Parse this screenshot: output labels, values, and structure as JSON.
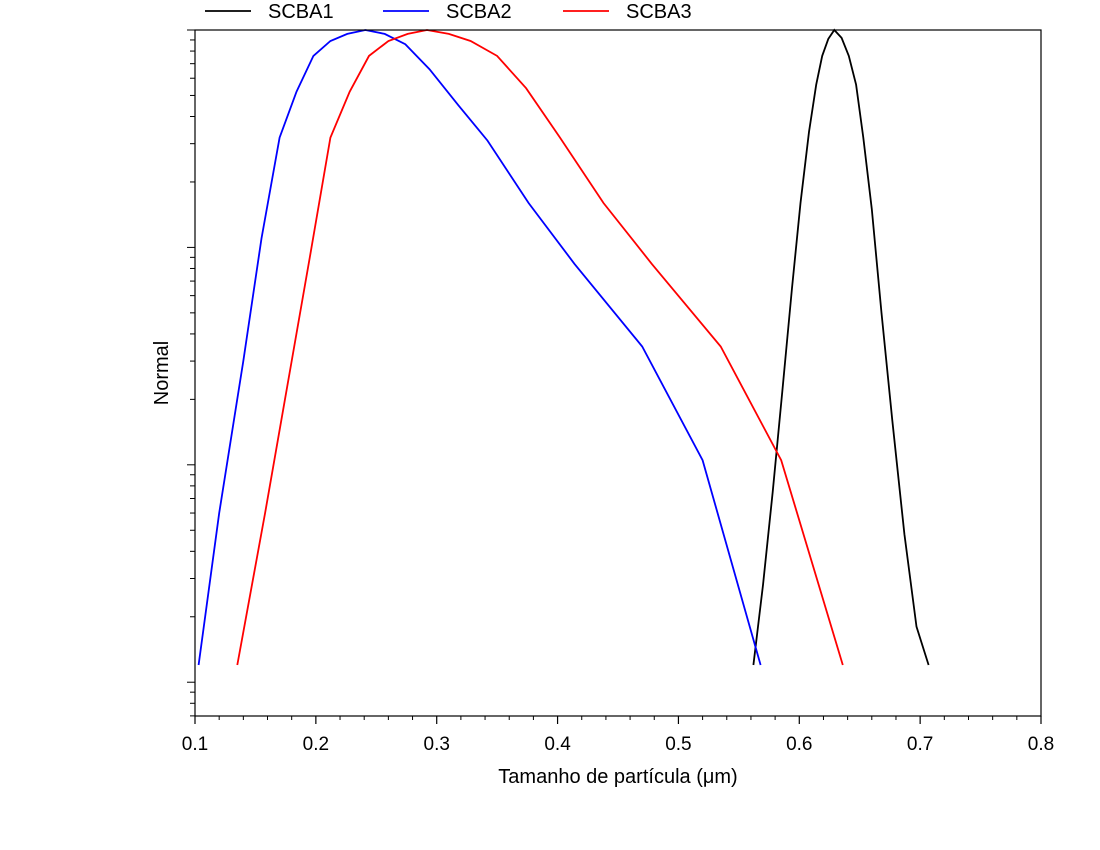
{
  "chart_data": {
    "type": "line",
    "title": "",
    "xlabel": "Tamanho de partícula (μm)",
    "ylabel": "Normal",
    "xlim": [
      0.1,
      0.8
    ],
    "xticks": [
      "0.1",
      "0.2",
      "0.3",
      "0.4",
      "0.5",
      "0.6",
      "0.7",
      "0.8"
    ],
    "yscale": "log",
    "y_tick_labels": "none",
    "grid": false,
    "legend_position": "top",
    "series": [
      {
        "name": "SCBA1",
        "color": "#000000",
        "points": [
          [
            0.562,
            0.0012
          ],
          [
            0.57,
            0.0028
          ],
          [
            0.578,
            0.0075
          ],
          [
            0.586,
            0.022
          ],
          [
            0.594,
            0.065
          ],
          [
            0.601,
            0.16
          ],
          [
            0.608,
            0.34
          ],
          [
            0.614,
            0.56
          ],
          [
            0.619,
            0.76
          ],
          [
            0.624,
            0.91
          ],
          [
            0.629,
            1.0
          ],
          [
            0.635,
            0.92
          ],
          [
            0.641,
            0.76
          ],
          [
            0.647,
            0.56
          ],
          [
            0.653,
            0.32
          ],
          [
            0.66,
            0.15
          ],
          [
            0.668,
            0.05
          ],
          [
            0.677,
            0.016
          ],
          [
            0.687,
            0.0048
          ],
          [
            0.697,
            0.0018
          ],
          [
            0.707,
            0.0012
          ]
        ]
      },
      {
        "name": "SCBA2",
        "color": "#0000ff",
        "points": [
          [
            0.103,
            0.0012
          ],
          [
            0.12,
            0.006
          ],
          [
            0.14,
            0.03
          ],
          [
            0.155,
            0.11
          ],
          [
            0.17,
            0.32
          ],
          [
            0.184,
            0.52
          ],
          [
            0.198,
            0.76
          ],
          [
            0.212,
            0.89
          ],
          [
            0.226,
            0.96
          ],
          [
            0.241,
            1.0
          ],
          [
            0.257,
            0.96
          ],
          [
            0.274,
            0.86
          ],
          [
            0.294,
            0.66
          ],
          [
            0.318,
            0.45
          ],
          [
            0.342,
            0.31
          ],
          [
            0.376,
            0.16
          ],
          [
            0.414,
            0.084
          ],
          [
            0.47,
            0.035
          ],
          [
            0.52,
            0.0105
          ],
          [
            0.568,
            0.0012
          ]
        ]
      },
      {
        "name": "SCBA3",
        "color": "#ff0000",
        "points": [
          [
            0.135,
            0.0012
          ],
          [
            0.158,
            0.006
          ],
          [
            0.178,
            0.026
          ],
          [
            0.195,
            0.09
          ],
          [
            0.212,
            0.32
          ],
          [
            0.228,
            0.52
          ],
          [
            0.244,
            0.76
          ],
          [
            0.26,
            0.89
          ],
          [
            0.276,
            0.96
          ],
          [
            0.292,
            1.0
          ],
          [
            0.31,
            0.96
          ],
          [
            0.328,
            0.89
          ],
          [
            0.35,
            0.76
          ],
          [
            0.374,
            0.54
          ],
          [
            0.402,
            0.32
          ],
          [
            0.438,
            0.16
          ],
          [
            0.478,
            0.084
          ],
          [
            0.535,
            0.035
          ],
          [
            0.585,
            0.0105
          ],
          [
            0.636,
            0.0012
          ]
        ]
      }
    ]
  }
}
